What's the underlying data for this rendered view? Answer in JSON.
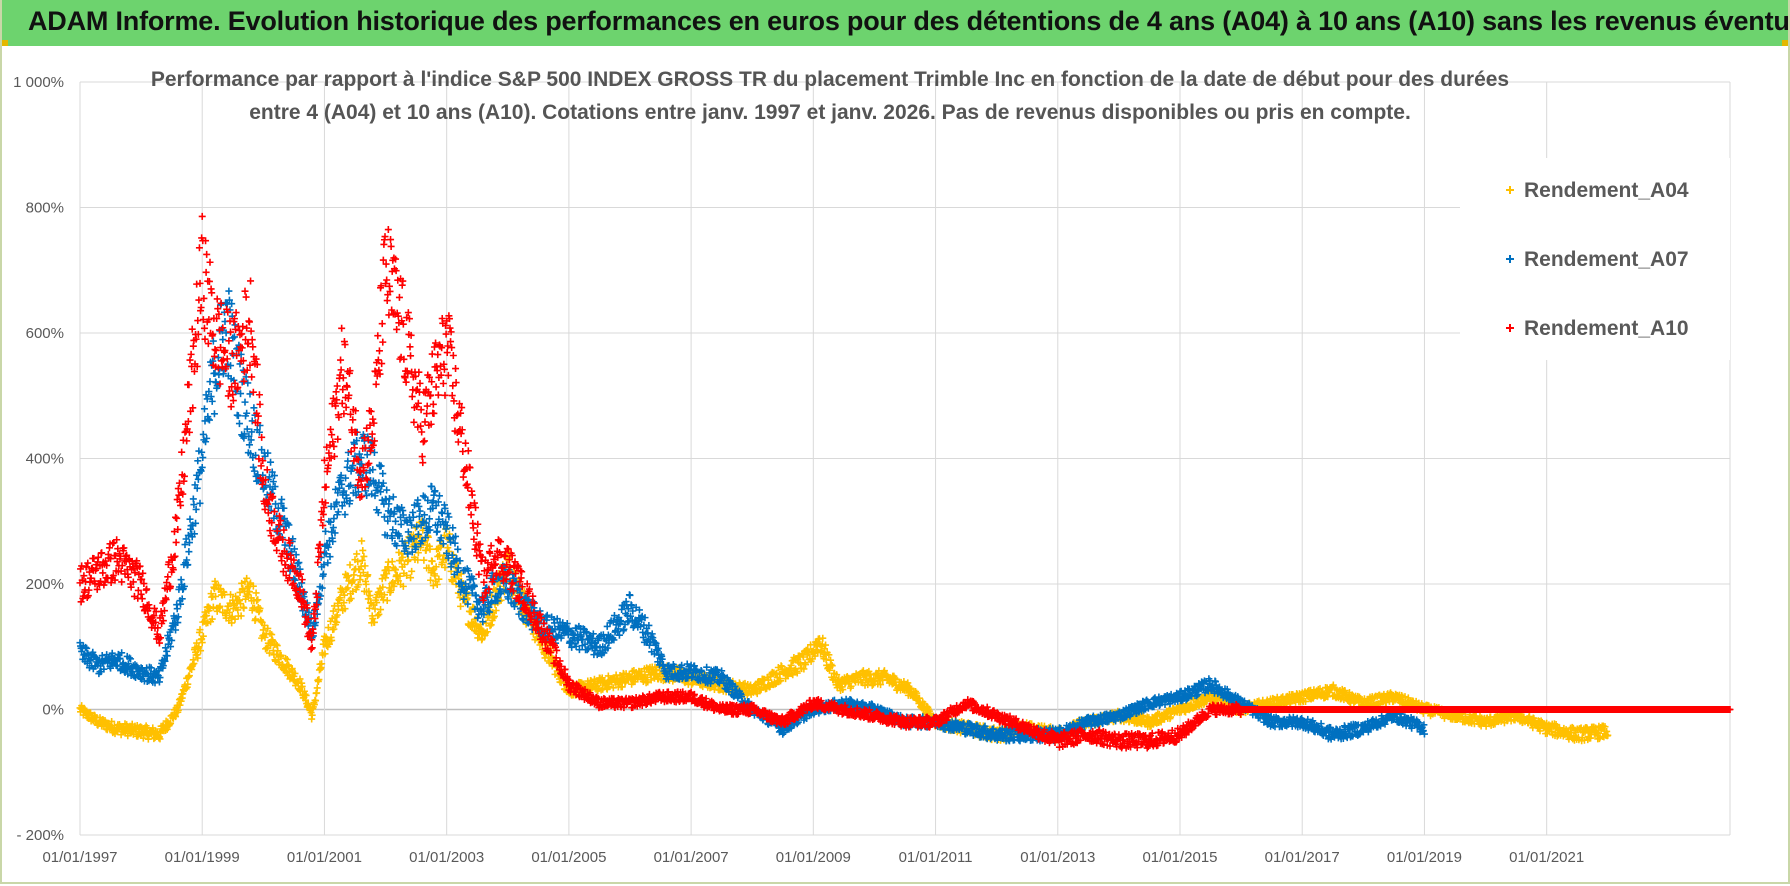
{
  "header": {
    "title": "ADAM Informe. Evolution historique des performances en euros pour des détentions de 4 ans (A04) à 10 ans (A10) sans les revenus éventuels"
  },
  "chart_data": {
    "type": "scatter",
    "title": "Performance par rapport à l'indice S&P 500 INDEX GROSS TR  du placement Trimble Inc en fonction de la date de début pour des durées",
    "subtitle": "entre 4 (A04) et 10 ans (A10).  Cotations entre janv. 1997 et janv. 2026. Pas de revenus disponibles ou pris en compte.",
    "xlabel": "",
    "ylabel": "",
    "xlim": [
      1997.0,
      2024.0
    ],
    "ylim": [
      -200,
      1000
    ],
    "x_ticks": [
      "01/01/1997",
      "01/01/1999",
      "01/01/2001",
      "01/01/2003",
      "01/01/2005",
      "01/01/2007",
      "01/01/2009",
      "01/01/2011",
      "01/01/2013",
      "01/01/2015",
      "01/01/2017",
      "01/01/2019",
      "01/01/2021"
    ],
    "x_tick_values": [
      1997,
      1999,
      2001,
      2003,
      2005,
      2007,
      2009,
      2011,
      2013,
      2015,
      2017,
      2019,
      2021
    ],
    "y_ticks": [
      "- 200%",
      "0%",
      "200%",
      "400%",
      "600%",
      "800%",
      "1 000%"
    ],
    "y_tick_values": [
      -200,
      0,
      200,
      400,
      600,
      800,
      1000
    ],
    "grid": true,
    "legend_position": "top-right",
    "series": [
      {
        "name": "Rendement_A04",
        "color": "#FFC000",
        "x_end": 2022.0,
        "points": [
          [
            1997.0,
            0
          ],
          [
            1997.3,
            -20
          ],
          [
            1997.6,
            -30
          ],
          [
            1998.0,
            -35
          ],
          [
            1998.3,
            -40
          ],
          [
            1998.6,
            0
          ],
          [
            1998.8,
            60
          ],
          [
            1999.0,
            120
          ],
          [
            1999.2,
            180
          ],
          [
            1999.5,
            160
          ],
          [
            1999.8,
            190
          ],
          [
            2000.0,
            120
          ],
          [
            2000.3,
            80
          ],
          [
            2000.6,
            40
          ],
          [
            2000.8,
            -10
          ],
          [
            2001.0,
            100
          ],
          [
            2001.3,
            180
          ],
          [
            2001.6,
            240
          ],
          [
            2001.8,
            150
          ],
          [
            2002.0,
            200
          ],
          [
            2002.3,
            230
          ],
          [
            2002.6,
            270
          ],
          [
            2002.8,
            220
          ],
          [
            2003.0,
            260
          ],
          [
            2003.3,
            170
          ],
          [
            2003.6,
            120
          ],
          [
            2003.8,
            180
          ],
          [
            2004.0,
            230
          ],
          [
            2004.3,
            160
          ],
          [
            2004.6,
            100
          ],
          [
            2005.0,
            30
          ],
          [
            2005.5,
            40
          ],
          [
            2006.0,
            50
          ],
          [
            2006.5,
            60
          ],
          [
            2007.0,
            50
          ],
          [
            2007.5,
            40
          ],
          [
            2008.0,
            30
          ],
          [
            2008.5,
            60
          ],
          [
            2008.9,
            80
          ],
          [
            2009.1,
            110
          ],
          [
            2009.4,
            40
          ],
          [
            2009.8,
            50
          ],
          [
            2010.2,
            50
          ],
          [
            2010.6,
            30
          ],
          [
            2011.0,
            -20
          ],
          [
            2011.5,
            -30
          ],
          [
            2012.0,
            -40
          ],
          [
            2012.5,
            -30
          ],
          [
            2013.0,
            -40
          ],
          [
            2013.5,
            -20
          ],
          [
            2014.0,
            -10
          ],
          [
            2014.5,
            -20
          ],
          [
            2015.0,
            0
          ],
          [
            2015.5,
            20
          ],
          [
            2016.0,
            0
          ],
          [
            2016.5,
            10
          ],
          [
            2017.0,
            20
          ],
          [
            2017.5,
            30
          ],
          [
            2018.0,
            10
          ],
          [
            2018.5,
            20
          ],
          [
            2019.0,
            0
          ],
          [
            2019.5,
            -10
          ],
          [
            2020.0,
            -20
          ],
          [
            2020.5,
            -10
          ],
          [
            2021.0,
            -30
          ],
          [
            2021.5,
            -40
          ],
          [
            2022.0,
            -35
          ]
        ]
      },
      {
        "name": "Rendement_A07",
        "color": "#0070C0",
        "x_end": 2019.0,
        "points": [
          [
            1997.0,
            90
          ],
          [
            1997.3,
            70
          ],
          [
            1997.6,
            80
          ],
          [
            1998.0,
            60
          ],
          [
            1998.3,
            50
          ],
          [
            1998.6,
            160
          ],
          [
            1998.8,
            280
          ],
          [
            1999.0,
            400
          ],
          [
            1999.2,
            540
          ],
          [
            1999.4,
            620
          ],
          [
            1999.6,
            520
          ],
          [
            1999.8,
            450
          ],
          [
            2000.0,
            380
          ],
          [
            2000.3,
            300
          ],
          [
            2000.6,
            200
          ],
          [
            2000.8,
            120
          ],
          [
            2001.0,
            250
          ],
          [
            2001.3,
            350
          ],
          [
            2001.6,
            400
          ],
          [
            2001.8,
            380
          ],
          [
            2002.0,
            320
          ],
          [
            2002.3,
            280
          ],
          [
            2002.6,
            300
          ],
          [
            2002.8,
            320
          ],
          [
            2003.0,
            280
          ],
          [
            2003.3,
            200
          ],
          [
            2003.6,
            160
          ],
          [
            2003.8,
            200
          ],
          [
            2004.0,
            200
          ],
          [
            2004.3,
            160
          ],
          [
            2004.6,
            130
          ],
          [
            2005.0,
            120
          ],
          [
            2005.5,
            100
          ],
          [
            2006.0,
            160
          ],
          [
            2006.3,
            120
          ],
          [
            2006.6,
            60
          ],
          [
            2007.0,
            60
          ],
          [
            2007.5,
            50
          ],
          [
            2008.0,
            0
          ],
          [
            2008.5,
            -30
          ],
          [
            2009.0,
            0
          ],
          [
            2009.5,
            10
          ],
          [
            2010.0,
            0
          ],
          [
            2010.5,
            -20
          ],
          [
            2011.0,
            -20
          ],
          [
            2011.5,
            -30
          ],
          [
            2012.0,
            -40
          ],
          [
            2012.5,
            -40
          ],
          [
            2013.0,
            -40
          ],
          [
            2013.5,
            -20
          ],
          [
            2014.0,
            -10
          ],
          [
            2014.5,
            10
          ],
          [
            2015.0,
            20
          ],
          [
            2015.5,
            40
          ],
          [
            2016.0,
            10
          ],
          [
            2016.5,
            -20
          ],
          [
            2017.0,
            -20
          ],
          [
            2017.5,
            -40
          ],
          [
            2018.0,
            -30
          ],
          [
            2018.5,
            -10
          ],
          [
            2019.0,
            -30
          ]
        ]
      },
      {
        "name": "Rendement_A10",
        "color": "#FF0000",
        "x_end": 2024.0,
        "points": [
          [
            1997.0,
            200
          ],
          [
            1997.3,
            220
          ],
          [
            1997.6,
            240
          ],
          [
            1998.0,
            200
          ],
          [
            1998.3,
            120
          ],
          [
            1998.6,
            300
          ],
          [
            1998.8,
            500
          ],
          [
            1999.0,
            700
          ],
          [
            1999.2,
            600
          ],
          [
            1999.5,
            550
          ],
          [
            1999.8,
            620
          ],
          [
            2000.0,
            360
          ],
          [
            2000.3,
            260
          ],
          [
            2000.6,
            200
          ],
          [
            2000.8,
            100
          ],
          [
            2001.0,
            350
          ],
          [
            2001.3,
            550
          ],
          [
            2001.6,
            380
          ],
          [
            2001.8,
            450
          ],
          [
            2002.0,
            700
          ],
          [
            2002.3,
            600
          ],
          [
            2002.6,
            450
          ],
          [
            2002.8,
            520
          ],
          [
            2003.0,
            580
          ],
          [
            2003.3,
            400
          ],
          [
            2003.6,
            200
          ],
          [
            2003.8,
            250
          ],
          [
            2004.0,
            230
          ],
          [
            2004.3,
            180
          ],
          [
            2004.6,
            120
          ],
          [
            2005.0,
            40
          ],
          [
            2005.5,
            10
          ],
          [
            2006.0,
            10
          ],
          [
            2006.5,
            20
          ],
          [
            2007.0,
            20
          ],
          [
            2007.5,
            0
          ],
          [
            2008.0,
            0
          ],
          [
            2008.5,
            -20
          ],
          [
            2009.0,
            10
          ],
          [
            2009.5,
            0
          ],
          [
            2010.0,
            -10
          ],
          [
            2010.5,
            -20
          ],
          [
            2011.0,
            -20
          ],
          [
            2011.5,
            10
          ],
          [
            2012.0,
            -10
          ],
          [
            2012.5,
            -30
          ],
          [
            2013.0,
            -50
          ],
          [
            2013.5,
            -40
          ],
          [
            2014.0,
            -50
          ],
          [
            2014.5,
            -50
          ],
          [
            2015.0,
            -40
          ],
          [
            2015.5,
            0
          ],
          [
            2016.0,
            0
          ],
          [
            2017.0,
            0
          ],
          [
            2018.0,
            0
          ],
          [
            2019.0,
            0
          ],
          [
            2020.0,
            0
          ],
          [
            2021.0,
            0
          ],
          [
            2022.0,
            0
          ],
          [
            2023.0,
            0
          ],
          [
            2024.0,
            0
          ]
        ]
      }
    ]
  }
}
